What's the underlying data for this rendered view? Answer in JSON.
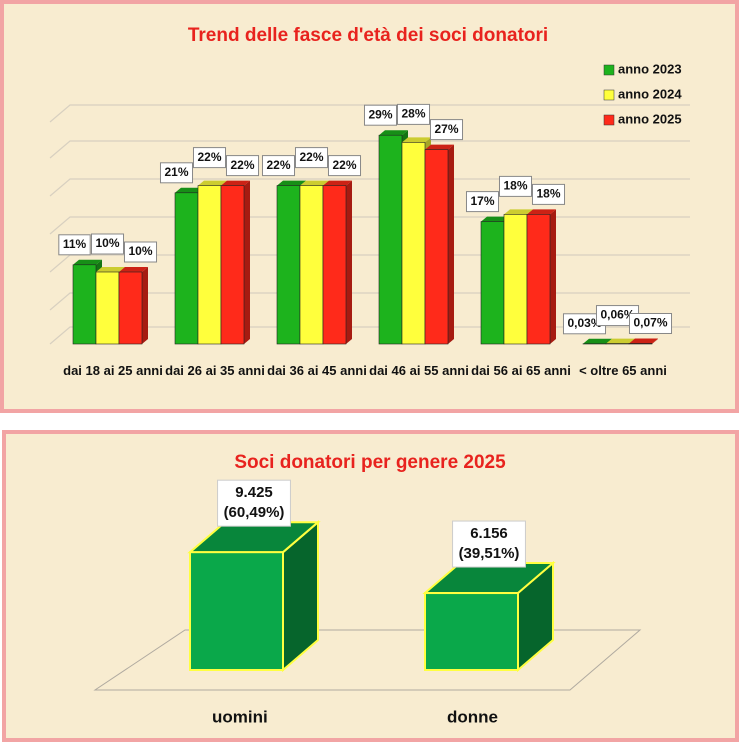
{
  "chart_data": [
    {
      "type": "bar3d",
      "title": "Trend delle fasce d'età dei soci donatori",
      "categories": [
        "dai 18 ai 25 anni",
        "dai 26 ai 35 anni",
        "dai 36 ai 45 anni",
        "dai 46 ai 55 anni",
        "dai 56 ai 65 anni",
        "< oltre 65 anni"
      ],
      "series": [
        {
          "name": "anno 2023",
          "color": "#1db31d",
          "values": [
            11,
            21,
            22,
            29,
            17,
            0.03
          ],
          "value_labels": [
            "11%",
            "21%",
            "22%",
            "29%",
            "17%",
            "0,03%"
          ]
        },
        {
          "name": "anno 2024",
          "color": "#ffff3c",
          "values": [
            10,
            22,
            22,
            28,
            18,
            0.06
          ],
          "value_labels": [
            "10%",
            "22%",
            "22%",
            "28%",
            "18%",
            "0,06%"
          ]
        },
        {
          "name": "anno 2025",
          "color": "#ff2a1a",
          "values": [
            10,
            22,
            22,
            27,
            18,
            0.07
          ],
          "value_labels": [
            "10%",
            "22%",
            "22%",
            "27%",
            "18%",
            "0,07%"
          ]
        }
      ],
      "ylim": [
        0,
        30
      ],
      "legend": "top-right"
    },
    {
      "type": "box3d",
      "title": "Soci donatori per genere 2025",
      "categories": [
        "uomini",
        "donne"
      ],
      "values": [
        9425,
        6156
      ],
      "value_labels": [
        "9.425",
        "6.156"
      ],
      "shares": [
        60.49,
        39.51
      ],
      "share_labels": [
        "(60,49%)",
        "(39,51%)"
      ],
      "color": "#0aa84a",
      "ylim": [
        0,
        10000
      ]
    }
  ]
}
